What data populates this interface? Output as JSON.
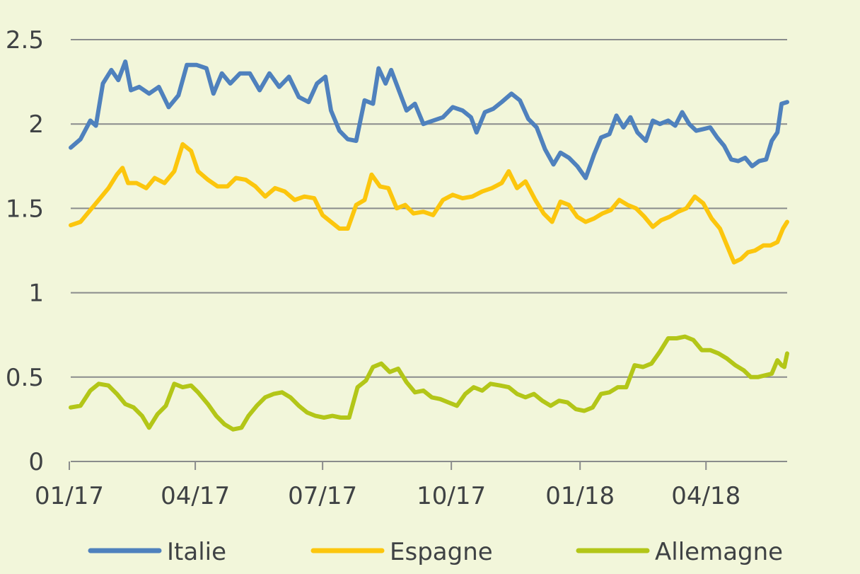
{
  "chart_data": {
    "type": "line",
    "title": "",
    "xlabel": "",
    "ylabel": "",
    "xlim": [
      "2017-01-02",
      "2018-05-29"
    ],
    "ylim": [
      0,
      2.5
    ],
    "grid": true,
    "legend_position": "bottom",
    "x_ticks": [
      {
        "date": "2017-01-01",
        "label": "01/17"
      },
      {
        "date": "2017-04-01",
        "label": "04/17"
      },
      {
        "date": "2017-07-01",
        "label": "07/17"
      },
      {
        "date": "2017-10-01",
        "label": "10/17"
      },
      {
        "date": "2018-01-01",
        "label": "01/18"
      },
      {
        "date": "2018-04-01",
        "label": "04/18"
      }
    ],
    "y_ticks": [
      {
        "value": 0,
        "label": "0"
      },
      {
        "value": 0.5,
        "label": "0.5"
      },
      {
        "value": 1,
        "label": "1"
      },
      {
        "value": 1.5,
        "label": "1.5"
      },
      {
        "value": 2,
        "label": "2"
      },
      {
        "value": 2.5,
        "label": "2.5"
      }
    ],
    "series": [
      {
        "name": "Italie",
        "color": "#4f81bd",
        "points": [
          [
            "2017-01-02",
            1.86
          ],
          [
            "2017-01-09",
            1.91
          ],
          [
            "2017-01-16",
            2.02
          ],
          [
            "2017-01-20",
            1.99
          ],
          [
            "2017-01-25",
            2.24
          ],
          [
            "2017-01-31",
            2.32
          ],
          [
            "2017-02-05",
            2.26
          ],
          [
            "2017-02-10",
            2.37
          ],
          [
            "2017-02-14",
            2.2
          ],
          [
            "2017-02-20",
            2.22
          ],
          [
            "2017-02-27",
            2.18
          ],
          [
            "2017-03-06",
            2.22
          ],
          [
            "2017-03-13",
            2.1
          ],
          [
            "2017-03-20",
            2.17
          ],
          [
            "2017-03-26",
            2.35
          ],
          [
            "2017-04-02",
            2.35
          ],
          [
            "2017-04-09",
            2.33
          ],
          [
            "2017-04-14",
            2.18
          ],
          [
            "2017-04-20",
            2.3
          ],
          [
            "2017-04-26",
            2.24
          ],
          [
            "2017-05-03",
            2.3
          ],
          [
            "2017-05-10",
            2.3
          ],
          [
            "2017-05-17",
            2.2
          ],
          [
            "2017-05-24",
            2.3
          ],
          [
            "2017-05-31",
            2.22
          ],
          [
            "2017-06-07",
            2.28
          ],
          [
            "2017-06-14",
            2.16
          ],
          [
            "2017-06-21",
            2.13
          ],
          [
            "2017-06-27",
            2.24
          ],
          [
            "2017-07-03",
            2.28
          ],
          [
            "2017-07-07",
            2.08
          ],
          [
            "2017-07-13",
            1.96
          ],
          [
            "2017-07-19",
            1.91
          ],
          [
            "2017-07-25",
            1.9
          ],
          [
            "2017-07-31",
            2.14
          ],
          [
            "2017-08-06",
            2.12
          ],
          [
            "2017-08-10",
            2.33
          ],
          [
            "2017-08-15",
            2.24
          ],
          [
            "2017-08-19",
            2.32
          ],
          [
            "2017-08-24",
            2.21
          ],
          [
            "2017-08-30",
            2.08
          ],
          [
            "2017-09-05",
            2.12
          ],
          [
            "2017-09-11",
            2.0
          ],
          [
            "2017-09-18",
            2.02
          ],
          [
            "2017-09-25",
            2.04
          ],
          [
            "2017-10-02",
            2.1
          ],
          [
            "2017-10-09",
            2.08
          ],
          [
            "2017-10-15",
            2.04
          ],
          [
            "2017-10-19",
            1.95
          ],
          [
            "2017-10-25",
            2.07
          ],
          [
            "2017-10-31",
            2.09
          ],
          [
            "2017-11-06",
            2.13
          ],
          [
            "2017-11-13",
            2.18
          ],
          [
            "2017-11-19",
            2.14
          ],
          [
            "2017-11-25",
            2.03
          ],
          [
            "2017-12-01",
            1.98
          ],
          [
            "2017-12-07",
            1.85
          ],
          [
            "2017-12-13",
            1.76
          ],
          [
            "2017-12-18",
            1.83
          ],
          [
            "2017-12-24",
            1.8
          ],
          [
            "2017-12-30",
            1.75
          ],
          [
            "2018-01-05",
            1.68
          ],
          [
            "2018-01-11",
            1.82
          ],
          [
            "2018-01-16",
            1.92
          ],
          [
            "2018-01-22",
            1.94
          ],
          [
            "2018-01-27",
            2.05
          ],
          [
            "2018-02-01",
            1.98
          ],
          [
            "2018-02-06",
            2.04
          ],
          [
            "2018-02-11",
            1.95
          ],
          [
            "2018-02-17",
            1.9
          ],
          [
            "2018-02-22",
            2.02
          ],
          [
            "2018-02-27",
            2.0
          ],
          [
            "2018-03-05",
            2.02
          ],
          [
            "2018-03-10",
            1.99
          ],
          [
            "2018-03-15",
            2.07
          ],
          [
            "2018-03-20",
            2.0
          ],
          [
            "2018-03-25",
            1.96
          ],
          [
            "2018-03-30",
            1.97
          ],
          [
            "2018-04-04",
            1.98
          ],
          [
            "2018-04-09",
            1.92
          ],
          [
            "2018-04-14",
            1.87
          ],
          [
            "2018-04-19",
            1.79
          ],
          [
            "2018-04-24",
            1.78
          ],
          [
            "2018-04-29",
            1.8
          ],
          [
            "2018-05-04",
            1.75
          ],
          [
            "2018-05-09",
            1.78
          ],
          [
            "2018-05-14",
            1.79
          ],
          [
            "2018-05-18",
            1.9
          ],
          [
            "2018-05-22",
            1.95
          ],
          [
            "2018-05-25",
            2.12
          ],
          [
            "2018-05-29",
            2.13
          ]
        ]
      },
      {
        "name": "Espagne",
        "color": "#fcc60d",
        "points": [
          [
            "2017-01-02",
            1.4
          ],
          [
            "2017-01-09",
            1.42
          ],
          [
            "2017-01-16",
            1.49
          ],
          [
            "2017-01-22",
            1.55
          ],
          [
            "2017-01-29",
            1.62
          ],
          [
            "2017-02-04",
            1.7
          ],
          [
            "2017-02-08",
            1.74
          ],
          [
            "2017-02-12",
            1.65
          ],
          [
            "2017-02-18",
            1.65
          ],
          [
            "2017-02-25",
            1.62
          ],
          [
            "2017-03-03",
            1.68
          ],
          [
            "2017-03-10",
            1.65
          ],
          [
            "2017-03-17",
            1.72
          ],
          [
            "2017-03-23",
            1.88
          ],
          [
            "2017-03-29",
            1.84
          ],
          [
            "2017-04-03",
            1.72
          ],
          [
            "2017-04-10",
            1.67
          ],
          [
            "2017-04-17",
            1.63
          ],
          [
            "2017-04-24",
            1.63
          ],
          [
            "2017-04-30",
            1.68
          ],
          [
            "2017-05-07",
            1.67
          ],
          [
            "2017-05-14",
            1.63
          ],
          [
            "2017-05-21",
            1.57
          ],
          [
            "2017-05-28",
            1.62
          ],
          [
            "2017-06-04",
            1.6
          ],
          [
            "2017-06-11",
            1.55
          ],
          [
            "2017-06-18",
            1.57
          ],
          [
            "2017-06-25",
            1.56
          ],
          [
            "2017-07-01",
            1.46
          ],
          [
            "2017-07-07",
            1.42
          ],
          [
            "2017-07-13",
            1.38
          ],
          [
            "2017-07-19",
            1.38
          ],
          [
            "2017-07-25",
            1.52
          ],
          [
            "2017-07-31",
            1.55
          ],
          [
            "2017-08-05",
            1.7
          ],
          [
            "2017-08-11",
            1.63
          ],
          [
            "2017-08-17",
            1.62
          ],
          [
            "2017-08-23",
            1.5
          ],
          [
            "2017-08-29",
            1.52
          ],
          [
            "2017-09-04",
            1.47
          ],
          [
            "2017-09-11",
            1.48
          ],
          [
            "2017-09-18",
            1.46
          ],
          [
            "2017-09-25",
            1.55
          ],
          [
            "2017-10-02",
            1.58
          ],
          [
            "2017-10-09",
            1.56
          ],
          [
            "2017-10-16",
            1.57
          ],
          [
            "2017-10-23",
            1.6
          ],
          [
            "2017-10-30",
            1.62
          ],
          [
            "2017-11-06",
            1.65
          ],
          [
            "2017-11-11",
            1.72
          ],
          [
            "2017-11-17",
            1.62
          ],
          [
            "2017-11-23",
            1.66
          ],
          [
            "2017-11-30",
            1.55
          ],
          [
            "2017-12-06",
            1.47
          ],
          [
            "2017-12-12",
            1.42
          ],
          [
            "2017-12-18",
            1.54
          ],
          [
            "2017-12-24",
            1.52
          ],
          [
            "2017-12-30",
            1.45
          ],
          [
            "2018-01-05",
            1.42
          ],
          [
            "2018-01-11",
            1.44
          ],
          [
            "2018-01-17",
            1.47
          ],
          [
            "2018-01-23",
            1.49
          ],
          [
            "2018-01-29",
            1.55
          ],
          [
            "2018-02-04",
            1.52
          ],
          [
            "2018-02-10",
            1.5
          ],
          [
            "2018-02-16",
            1.45
          ],
          [
            "2018-02-22",
            1.39
          ],
          [
            "2018-02-28",
            1.43
          ],
          [
            "2018-03-06",
            1.45
          ],
          [
            "2018-03-12",
            1.48
          ],
          [
            "2018-03-18",
            1.5
          ],
          [
            "2018-03-24",
            1.57
          ],
          [
            "2018-03-30",
            1.53
          ],
          [
            "2018-04-05",
            1.44
          ],
          [
            "2018-04-11",
            1.38
          ],
          [
            "2018-04-16",
            1.28
          ],
          [
            "2018-04-21",
            1.18
          ],
          [
            "2018-04-26",
            1.2
          ],
          [
            "2018-05-01",
            1.24
          ],
          [
            "2018-05-06",
            1.25
          ],
          [
            "2018-05-12",
            1.28
          ],
          [
            "2018-05-17",
            1.28
          ],
          [
            "2018-05-22",
            1.3
          ],
          [
            "2018-05-26",
            1.38
          ],
          [
            "2018-05-29",
            1.42
          ]
        ]
      },
      {
        "name": "Allemagne",
        "color": "#b3c618",
        "points": [
          [
            "2017-01-02",
            0.32
          ],
          [
            "2017-01-09",
            0.33
          ],
          [
            "2017-01-16",
            0.42
          ],
          [
            "2017-01-22",
            0.46
          ],
          [
            "2017-01-29",
            0.45
          ],
          [
            "2017-02-04",
            0.4
          ],
          [
            "2017-02-10",
            0.34
          ],
          [
            "2017-02-16",
            0.32
          ],
          [
            "2017-02-22",
            0.27
          ],
          [
            "2017-02-27",
            0.2
          ],
          [
            "2017-03-05",
            0.28
          ],
          [
            "2017-03-11",
            0.33
          ],
          [
            "2017-03-17",
            0.46
          ],
          [
            "2017-03-23",
            0.44
          ],
          [
            "2017-03-29",
            0.45
          ],
          [
            "2017-04-03",
            0.41
          ],
          [
            "2017-04-10",
            0.34
          ],
          [
            "2017-04-16",
            0.27
          ],
          [
            "2017-04-22",
            0.22
          ],
          [
            "2017-04-28",
            0.19
          ],
          [
            "2017-05-04",
            0.2
          ],
          [
            "2017-05-09",
            0.27
          ],
          [
            "2017-05-15",
            0.33
          ],
          [
            "2017-05-21",
            0.38
          ],
          [
            "2017-05-27",
            0.4
          ],
          [
            "2017-06-02",
            0.41
          ],
          [
            "2017-06-08",
            0.38
          ],
          [
            "2017-06-14",
            0.33
          ],
          [
            "2017-06-20",
            0.29
          ],
          [
            "2017-06-26",
            0.27
          ],
          [
            "2017-07-02",
            0.26
          ],
          [
            "2017-07-08",
            0.27
          ],
          [
            "2017-07-14",
            0.26
          ],
          [
            "2017-07-20",
            0.26
          ],
          [
            "2017-07-26",
            0.44
          ],
          [
            "2017-08-01",
            0.48
          ],
          [
            "2017-08-06",
            0.56
          ],
          [
            "2017-08-12",
            0.58
          ],
          [
            "2017-08-18",
            0.53
          ],
          [
            "2017-08-24",
            0.55
          ],
          [
            "2017-08-30",
            0.47
          ],
          [
            "2017-09-05",
            0.41
          ],
          [
            "2017-09-11",
            0.42
          ],
          [
            "2017-09-17",
            0.38
          ],
          [
            "2017-09-23",
            0.37
          ],
          [
            "2017-09-29",
            0.35
          ],
          [
            "2017-10-05",
            0.33
          ],
          [
            "2017-10-11",
            0.4
          ],
          [
            "2017-10-17",
            0.44
          ],
          [
            "2017-10-23",
            0.42
          ],
          [
            "2017-10-29",
            0.46
          ],
          [
            "2017-11-05",
            0.45
          ],
          [
            "2017-11-11",
            0.44
          ],
          [
            "2017-11-17",
            0.4
          ],
          [
            "2017-11-23",
            0.38
          ],
          [
            "2017-11-29",
            0.4
          ],
          [
            "2017-12-05",
            0.36
          ],
          [
            "2017-12-11",
            0.33
          ],
          [
            "2017-12-17",
            0.36
          ],
          [
            "2017-12-23",
            0.35
          ],
          [
            "2017-12-29",
            0.31
          ],
          [
            "2018-01-04",
            0.3
          ],
          [
            "2018-01-10",
            0.32
          ],
          [
            "2018-01-16",
            0.4
          ],
          [
            "2018-01-22",
            0.41
          ],
          [
            "2018-01-28",
            0.44
          ],
          [
            "2018-02-03",
            0.44
          ],
          [
            "2018-02-09",
            0.57
          ],
          [
            "2018-02-15",
            0.56
          ],
          [
            "2018-02-21",
            0.58
          ],
          [
            "2018-02-27",
            0.65
          ],
          [
            "2018-03-05",
            0.73
          ],
          [
            "2018-03-11",
            0.73
          ],
          [
            "2018-03-17",
            0.74
          ],
          [
            "2018-03-23",
            0.72
          ],
          [
            "2018-03-29",
            0.66
          ],
          [
            "2018-04-04",
            0.66
          ],
          [
            "2018-04-10",
            0.64
          ],
          [
            "2018-04-16",
            0.61
          ],
          [
            "2018-04-22",
            0.57
          ],
          [
            "2018-04-28",
            0.54
          ],
          [
            "2018-05-03",
            0.5
          ],
          [
            "2018-05-08",
            0.5
          ],
          [
            "2018-05-13",
            0.51
          ],
          [
            "2018-05-18",
            0.52
          ],
          [
            "2018-05-22",
            0.6
          ],
          [
            "2018-05-25",
            0.57
          ],
          [
            "2018-05-27",
            0.56
          ],
          [
            "2018-05-29",
            0.64
          ]
        ]
      }
    ]
  }
}
